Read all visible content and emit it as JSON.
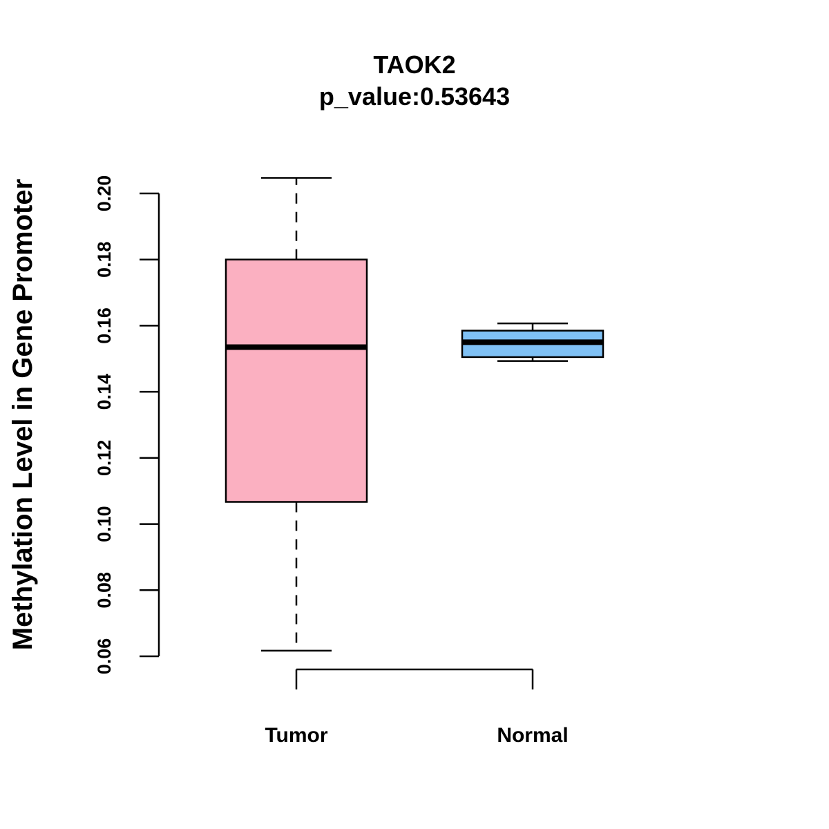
{
  "chart_data": {
    "type": "box",
    "title": "TAOK2",
    "subtitle": "p_value:0.53643",
    "xlabel": "",
    "ylabel": "Methylation Level in Gene Promoter",
    "ylim": [
      0.06,
      0.2
    ],
    "yticks": [
      0.06,
      0.08,
      0.1,
      0.12,
      0.14,
      0.16,
      0.18,
      0.2
    ],
    "ytick_labels": [
      "0.06",
      "0.08",
      "0.10",
      "0.12",
      "0.14",
      "0.16",
      "0.18",
      "0.20"
    ],
    "grid": false,
    "categories": [
      "Tumor",
      "Normal"
    ],
    "boxes": [
      {
        "category": "Tumor",
        "whisker_low": 0.0617,
        "q1": 0.1067,
        "median": 0.1535,
        "q3": 0.18,
        "whisker_high": 0.2047,
        "color": "#FBB0C1"
      },
      {
        "category": "Normal",
        "whisker_low": 0.1493,
        "q1": 0.1505,
        "median": 0.155,
        "q3": 0.1585,
        "whisker_high": 0.1607,
        "color": "#7FC1F5"
      }
    ]
  }
}
